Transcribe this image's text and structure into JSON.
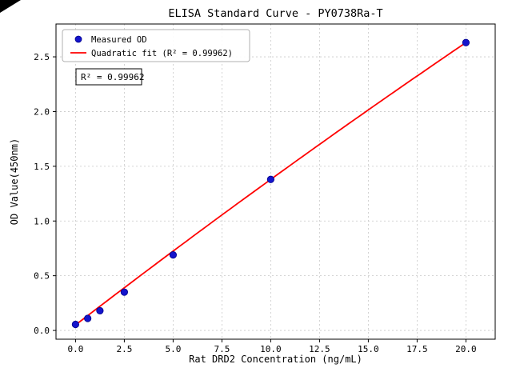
{
  "figure": {
    "background": "#ffffff"
  },
  "chart_data": {
    "type": "scatter",
    "title": "ELISA Standard Curve - PY0738Ra-T",
    "xlabel": "Rat DRD2 Concentration (ng/mL)",
    "ylabel": "OD Value(450nm)",
    "xlim": [
      -1.0,
      21.5
    ],
    "ylim": [
      -0.08,
      2.8
    ],
    "xticks": [
      0.0,
      2.5,
      5.0,
      7.5,
      10.0,
      12.5,
      15.0,
      17.5,
      20.0
    ],
    "xtick_labels": [
      "0.0",
      "2.5",
      "5.0",
      "7.5",
      "10.0",
      "12.5",
      "15.0",
      "17.5",
      "20.0"
    ],
    "yticks": [
      0.0,
      0.5,
      1.0,
      1.5,
      2.0,
      2.5
    ],
    "ytick_labels": [
      "0.0",
      "0.5",
      "1.0",
      "1.5",
      "2.0",
      "2.5"
    ],
    "grid": true,
    "grid_color": "#c8c8c8",
    "series": [
      {
        "name": "Measured OD",
        "type": "scatter",
        "color": "#1414cc",
        "edge_color": "#00008b",
        "x": [
          0,
          0.625,
          1.25,
          2.5,
          5,
          10,
          20
        ],
        "y": [
          0.055,
          0.11,
          0.18,
          0.35,
          0.69,
          1.38,
          2.63
        ]
      },
      {
        "name": "Quadratic fit (R² = 0.99962)",
        "type": "line",
        "color": "#ff0000",
        "fit": {
          "a": -0.0004,
          "b": 0.137,
          "c": 0.05,
          "x_start": 0,
          "x_end": 20
        }
      }
    ],
    "legend": {
      "position": "upper left",
      "items": [
        {
          "label": "Measured OD",
          "marker": "dot",
          "color": "#1414cc"
        },
        {
          "label": "Quadratic fit (R² = 0.99962)",
          "marker": "line",
          "color": "#ff0000"
        }
      ]
    },
    "annotation": {
      "text": "R² = 0.99962"
    }
  }
}
